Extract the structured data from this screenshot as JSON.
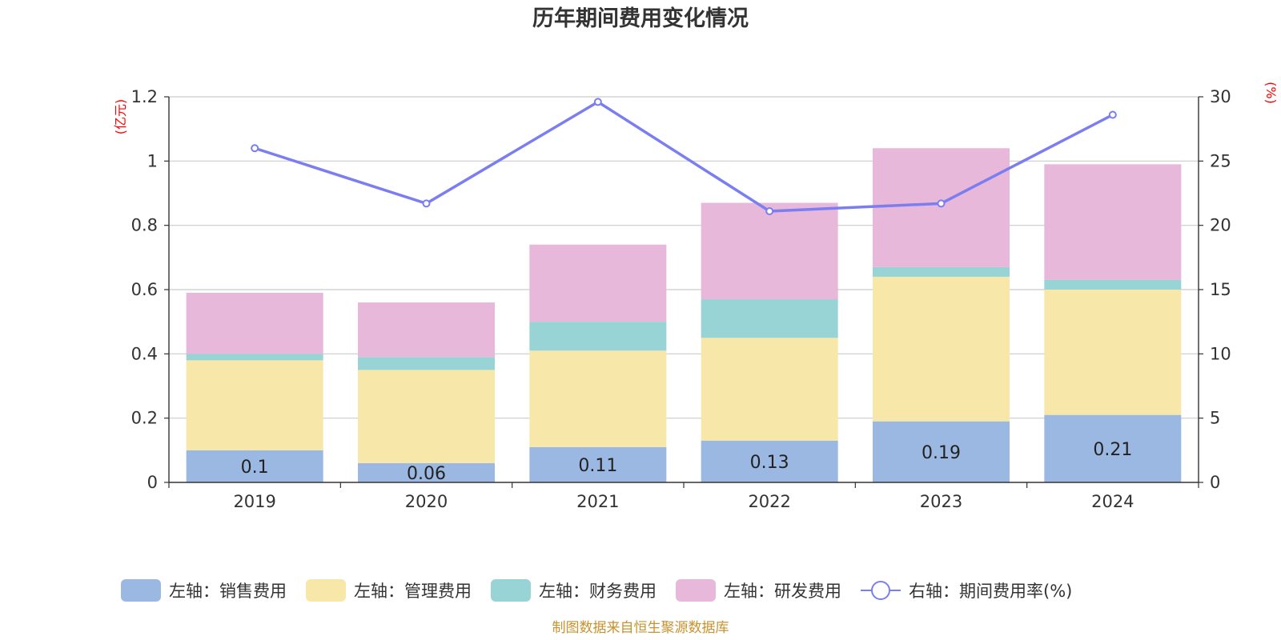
{
  "chart_data": {
    "type": "bar",
    "title": "历年期间费用变化情况",
    "categories": [
      "2019",
      "2020",
      "2021",
      "2022",
      "2023",
      "2024"
    ],
    "series": [
      {
        "name": "左轴：销售费用",
        "axis": "left",
        "kind": "stacked-bar",
        "color": "#9bb8e2",
        "values": [
          0.1,
          0.06,
          0.11,
          0.13,
          0.19,
          0.21
        ],
        "data_labels": [
          "0.1",
          "0.06",
          "0.11",
          "0.13",
          "0.19",
          "0.21"
        ]
      },
      {
        "name": "左轴：管理费用",
        "axis": "left",
        "kind": "stacked-bar",
        "color": "#f7e7a8",
        "values": [
          0.28,
          0.29,
          0.3,
          0.32,
          0.45,
          0.39
        ]
      },
      {
        "name": "左轴：财务费用",
        "axis": "left",
        "kind": "stacked-bar",
        "color": "#98d4d5",
        "values": [
          0.02,
          0.04,
          0.09,
          0.12,
          0.03,
          0.03
        ]
      },
      {
        "name": "左轴：研发费用",
        "axis": "left",
        "kind": "stacked-bar",
        "color": "#e7b8d9",
        "values": [
          0.19,
          0.17,
          0.24,
          0.3,
          0.37,
          0.36
        ]
      },
      {
        "name": "右轴：期间费用率(%)",
        "axis": "right",
        "kind": "line",
        "color": "#7b7ef0",
        "values": [
          26.0,
          21.7,
          29.6,
          21.1,
          21.7,
          28.6
        ]
      }
    ],
    "left_axis": {
      "label": "(亿元)",
      "ylim": [
        0,
        1.2
      ],
      "ticks": [
        "0",
        "0.2",
        "0.4",
        "0.6",
        "0.8",
        "1",
        "1.2"
      ]
    },
    "right_axis": {
      "label": "(%)",
      "ylim": [
        0,
        30
      ],
      "ticks": [
        "0",
        "5",
        "10",
        "15",
        "20",
        "25",
        "30"
      ]
    },
    "grid": true,
    "legend_position": "bottom"
  },
  "source_note": "制图数据来自恒生聚源数据库"
}
